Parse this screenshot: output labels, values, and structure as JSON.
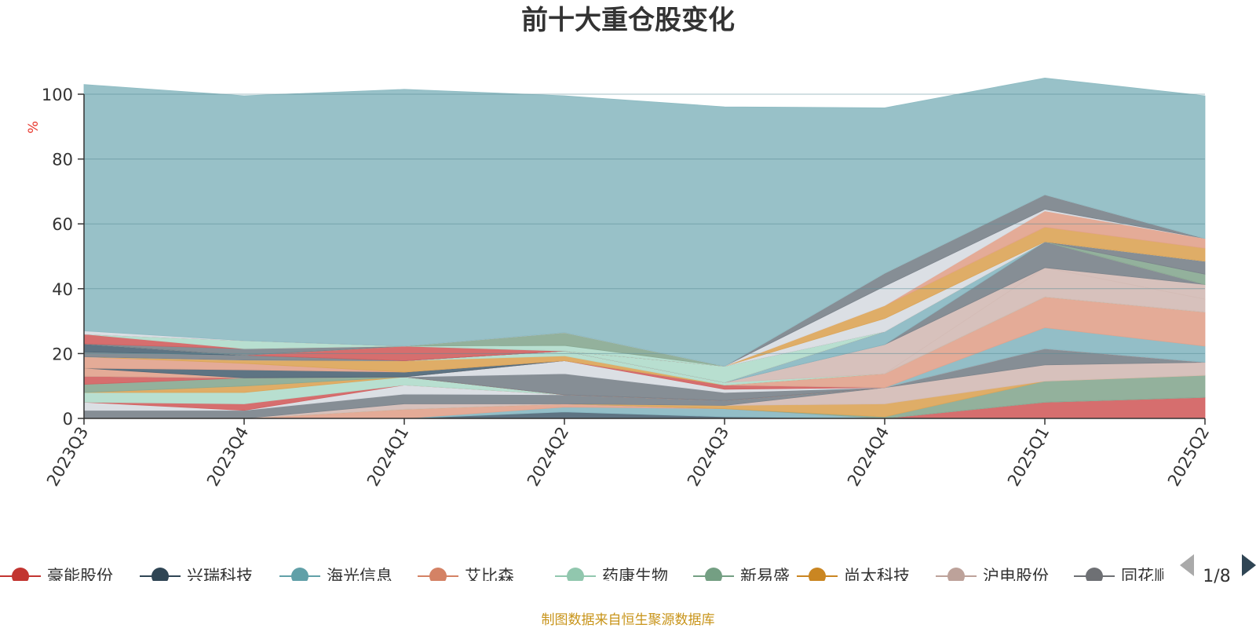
{
  "chart_data": {
    "type": "area",
    "title": "前十大重仓股变化",
    "ylabel": "%",
    "xlabel": "",
    "ylim": [
      0,
      100
    ],
    "yticks": [
      0,
      20,
      40,
      60,
      80,
      100
    ],
    "grid": true,
    "stacked": true,
    "categories": [
      "2023Q3",
      "2023Q4",
      "2024Q1",
      "2024Q2",
      "2024Q3",
      "2024Q4",
      "2025Q1",
      "2025Q2"
    ],
    "series": [
      {
        "name": "豪能股份",
        "color": "#d26262",
        "values": [
          0,
          0,
          0,
          0,
          0,
          0,
          5,
          6.5
        ]
      },
      {
        "name": "兴瑞科技",
        "color": "#506878",
        "values": [
          0,
          0,
          0,
          2,
          0.5,
          0,
          0,
          0
        ]
      },
      {
        "name": "海光信息",
        "color": "#8ab8c2",
        "values": [
          0,
          0,
          0,
          1.5,
          2.5,
          0,
          0,
          0
        ]
      },
      {
        "name": "艾比森",
        "color": "#e2a48e",
        "values": [
          0,
          0,
          2.8,
          1,
          0,
          0,
          0,
          0
        ]
      },
      {
        "name": "药康生物",
        "color": "#b2dccc",
        "values": [
          0,
          0,
          0,
          0,
          0,
          0,
          0,
          0
        ]
      },
      {
        "name": "新易盛",
        "color": "#8aaa94",
        "values": [
          0,
          0,
          0,
          0,
          0,
          0.5,
          6.5,
          6.8
        ]
      },
      {
        "name": "尚太科技",
        "color": "#dca65a",
        "values": [
          0,
          0,
          0,
          0,
          1,
          4,
          0,
          0
        ]
      },
      {
        "name": "沪电股份",
        "color": "#d4bcb6",
        "values": [
          0,
          0,
          1.7,
          0,
          0,
          5,
          5,
          4
        ]
      },
      {
        "name": "同花顺",
        "color": "#7c848c",
        "values": [
          2.5,
          2.5,
          3,
          2.8,
          1.5,
          0,
          5,
          0
        ]
      },
      {
        "name": "",
        "color": "#d8dce2",
        "values": [
          2.5,
          0,
          2.8,
          0,
          0,
          0,
          0,
          0
        ]
      },
      {
        "name": "",
        "color": "#d26262",
        "values": [
          0,
          2,
          0,
          0,
          0,
          0,
          0,
          0
        ]
      },
      {
        "name": "",
        "color": "#b2dccc",
        "values": [
          3,
          3.5,
          2.5,
          0,
          0,
          0,
          0,
          0
        ]
      },
      {
        "name": "",
        "color": "#dca65a",
        "values": [
          0,
          2,
          0,
          0,
          0,
          0,
          0,
          0
        ]
      },
      {
        "name": "",
        "color": "#8aaa94",
        "values": [
          2.5,
          2.5,
          0,
          0,
          0,
          0,
          0,
          0
        ]
      },
      {
        "name": "",
        "color": "#d26262",
        "values": [
          2.5,
          0,
          0,
          0,
          0,
          0,
          0,
          0
        ]
      },
      {
        "name": "",
        "color": "#7c848c",
        "values": [
          0,
          0,
          0,
          6.5,
          2.5,
          0,
          0,
          0
        ]
      },
      {
        "name": "",
        "color": "#d8dce2",
        "values": [
          0,
          0,
          0,
          4,
          1,
          0,
          0,
          0
        ]
      },
      {
        "name": "",
        "color": "#d26262",
        "values": [
          0,
          0,
          0,
          0,
          1.3,
          0,
          0,
          0
        ]
      },
      {
        "name": "",
        "color": "#8ab8c2",
        "values": [
          0,
          0,
          0,
          0,
          0,
          0,
          6.5,
          5
        ]
      },
      {
        "name": "",
        "color": "#e2a48e",
        "values": [
          2.5,
          0,
          0,
          0,
          0,
          4.3,
          9.5,
          10.5
        ]
      },
      {
        "name": "",
        "color": "#506878",
        "values": [
          0,
          2.5,
          1.5,
          0,
          0,
          0,
          0,
          0
        ]
      },
      {
        "name": "",
        "color": "#e2a48e",
        "values": [
          3.5,
          2,
          0,
          0,
          0,
          0,
          0,
          0
        ]
      },
      {
        "name": "",
        "color": "#dca65a",
        "values": [
          0,
          1,
          3.5,
          1.5,
          0,
          0,
          0,
          0
        ]
      },
      {
        "name": "",
        "color": "#b2dccc",
        "values": [
          0,
          0,
          0,
          1.5,
          0.8,
          0,
          0,
          0
        ]
      },
      {
        "name": "",
        "color": "#d4bcb6",
        "values": [
          0,
          0,
          0,
          0,
          0,
          0,
          9,
          4
        ]
      },
      {
        "name": "",
        "color": "#d4bcb6",
        "values": [
          0,
          0,
          0,
          0,
          0,
          9,
          0,
          4.5
        ]
      },
      {
        "name": "",
        "color": "#7c848c",
        "values": [
          1.5,
          1.5,
          0,
          0,
          0,
          0,
          8,
          0
        ]
      },
      {
        "name": "",
        "color": "#8ab8c2",
        "values": [
          0,
          0,
          0,
          0,
          0,
          4,
          0,
          0
        ]
      },
      {
        "name": "",
        "color": "#506878",
        "values": [
          2.5,
          0,
          0,
          0,
          0,
          0,
          0,
          0
        ]
      },
      {
        "name": "",
        "color": "#d26262",
        "values": [
          0,
          0,
          4.5,
          0,
          0,
          0,
          0,
          0
        ]
      },
      {
        "name": "",
        "color": "#b2dccc",
        "values": [
          0,
          0,
          0,
          0,
          5,
          0,
          0,
          0
        ]
      },
      {
        "name": "",
        "color": "#8aaa94",
        "values": [
          0,
          0,
          0,
          0,
          0,
          0,
          0,
          3.2
        ]
      },
      {
        "name": "",
        "color": "#7c848c",
        "values": [
          0,
          2,
          0,
          0,
          0,
          0,
          0,
          4
        ]
      },
      {
        "name": "",
        "color": "#d26262",
        "values": [
          3,
          0,
          0,
          0,
          0,
          0,
          0,
          0
        ]
      },
      {
        "name": "",
        "color": "#b2dccc",
        "values": [
          0,
          2.5,
          0,
          1.7,
          0,
          0,
          0,
          0
        ]
      },
      {
        "name": "",
        "color": "#8aaa94",
        "values": [
          0,
          0,
          0,
          4,
          0,
          0,
          0,
          0
        ]
      },
      {
        "name": "",
        "color": "#d8dce2",
        "values": [
          0,
          0,
          0,
          0,
          0,
          4,
          0,
          0
        ]
      },
      {
        "name": "",
        "color": "#dca65a",
        "values": [
          0,
          0,
          0,
          0,
          0,
          4,
          4.5,
          4
        ]
      },
      {
        "name": "",
        "color": "#e2a48e",
        "values": [
          0,
          0,
          0,
          0,
          0,
          0,
          5,
          3
        ]
      },
      {
        "name": "",
        "color": "#d8dce2",
        "values": [
          0,
          0,
          0,
          0,
          0,
          6,
          0.5,
          0
        ]
      },
      {
        "name": "",
        "color": "#7c848c",
        "values": [
          0,
          0,
          0,
          0,
          0,
          4,
          4.5,
          0
        ]
      },
      {
        "name": "",
        "color": "#d8dce2",
        "values": [
          1,
          0,
          0,
          0,
          0,
          0,
          0,
          0
        ]
      },
      {
        "name": "",
        "color": "#8fbcc3",
        "values": [
          76,
          75.5,
          79.2,
          73,
          80,
          51,
          36,
          44
        ]
      }
    ]
  },
  "legend": {
    "items": [
      {
        "label": "豪能股份",
        "color": "#c23531"
      },
      {
        "label": "兴瑞科技",
        "color": "#2f4554"
      },
      {
        "label": "海光信息",
        "color": "#61a0a8"
      },
      {
        "label": "艾比森",
        "color": "#d48265"
      },
      {
        "label": "药康生物",
        "color": "#91c7ae"
      },
      {
        "label": "新易盛",
        "color": "#749f83"
      },
      {
        "label": "尚太科技",
        "color": "#ca8622"
      },
      {
        "label": "沪电股份",
        "color": "#bda29a"
      },
      {
        "label": "同花顺",
        "color": "#6e7074"
      }
    ],
    "page": "1/8"
  },
  "source": "制图数据来自恒生聚源数据库"
}
